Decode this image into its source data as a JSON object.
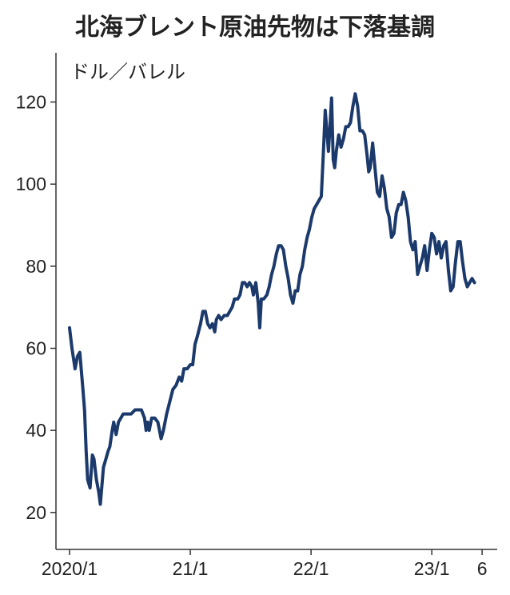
{
  "chart_data": {
    "type": "line",
    "title": "北海ブレント原油先物は下落基調",
    "y_label": "ドル／バレル",
    "color": "#1b3a6b",
    "xlim": [
      -1.35,
      42.5
    ],
    "xticks": [
      {
        "value": 0,
        "label": "2020/1"
      },
      {
        "value": 12,
        "label": "21/1"
      },
      {
        "value": 24,
        "label": "22/1"
      },
      {
        "value": 36,
        "label": "23/1"
      },
      {
        "value": 41,
        "label": "6"
      }
    ],
    "ylim": [
      11,
      132
    ],
    "yticks": [
      20,
      40,
      60,
      80,
      100,
      120
    ],
    "x": [
      0,
      0.24,
      0.55,
      0.78,
      1.02,
      1.33,
      1.49,
      1.65,
      1.8,
      2.04,
      2.27,
      2.43,
      2.67,
      2.9,
      3.06,
      3.37,
      3.61,
      3.84,
      4.0,
      4.24,
      4.39,
      4.63,
      4.86,
      5.1,
      5.33,
      5.73,
      6.12,
      6.51,
      6.82,
      7.14,
      7.45,
      7.61,
      7.76,
      7.92,
      8.16,
      8.47,
      8.78,
      9.1,
      9.33,
      9.65,
      9.96,
      10.27,
      10.59,
      10.9,
      11.14,
      11.37,
      11.69,
      12.0,
      12.24,
      12.47,
      12.71,
      13.02,
      13.25,
      13.49,
      13.73,
      13.96,
      14.2,
      14.43,
      14.59,
      14.82,
      15.06,
      15.37,
      15.69,
      15.92,
      16.16,
      16.39,
      16.71,
      16.94,
      17.18,
      17.41,
      17.65,
      17.88,
      18.12,
      18.27,
      18.51,
      18.75,
      18.9,
      19.06,
      19.29,
      19.61,
      19.84,
      20.08,
      20.31,
      20.55,
      20.78,
      21.02,
      21.25,
      21.49,
      21.73,
      21.96,
      22.2,
      22.43,
      22.67,
      22.9,
      23.14,
      23.37,
      23.61,
      23.84,
      24.08,
      24.31,
      24.55,
      24.78,
      25.02,
      25.25,
      25.41,
      25.57,
      25.73,
      25.88,
      26.04,
      26.2,
      26.35,
      26.51,
      26.75,
      26.98,
      27.22,
      27.45,
      27.69,
      27.92,
      28.16,
      28.39,
      28.63,
      28.86,
      29.1,
      29.33,
      29.57,
      29.73,
      29.88,
      30.12,
      30.35,
      30.59,
      30.82,
      31.06,
      31.29,
      31.53,
      31.76,
      32.0,
      32.24,
      32.47,
      32.71,
      32.94,
      33.18,
      33.41,
      33.65,
      33.88,
      34.12,
      34.35,
      34.59,
      34.82,
      35.06,
      35.29,
      35.53,
      35.76,
      36.0,
      36.24,
      36.47,
      36.71,
      36.94,
      37.18,
      37.41,
      37.65,
      37.88,
      38.12,
      38.35,
      38.59,
      38.82,
      39.06,
      39.29,
      39.53,
      39.76,
      40.0,
      40.24
    ],
    "values": [
      65,
      60,
      55,
      58,
      59,
      50,
      45,
      35,
      28,
      26,
      34,
      33,
      28,
      25,
      22,
      31,
      33,
      35,
      36,
      40,
      42,
      39,
      42,
      43,
      44,
      44,
      44,
      45,
      45,
      45,
      43,
      40,
      42,
      40,
      43,
      43,
      42,
      38,
      40,
      44,
      47,
      50,
      51,
      53,
      52,
      55,
      55,
      56,
      56,
      61,
      63,
      66,
      69,
      69,
      66,
      65,
      66,
      64,
      67,
      68,
      67,
      68,
      68,
      69,
      70,
      72,
      72,
      73,
      76,
      76,
      75,
      76,
      75,
      73,
      76,
      71,
      65,
      72,
      72,
      73,
      75,
      78,
      80,
      83,
      85,
      85,
      84,
      80,
      77,
      73,
      71,
      74,
      74,
      78,
      80,
      84,
      87,
      89,
      92,
      94,
      95,
      96,
      97,
      109,
      118,
      113,
      108,
      114,
      121,
      106,
      104,
      108,
      112,
      109,
      111,
      114,
      114,
      115,
      119,
      122,
      119,
      113,
      113,
      112,
      107,
      103,
      104,
      110,
      104,
      98,
      97,
      102,
      99,
      94,
      92,
      87,
      88,
      93,
      95,
      95,
      98,
      96,
      92,
      86,
      84,
      86,
      78,
      80,
      82,
      85,
      79,
      84,
      88,
      87,
      83,
      86,
      82,
      85,
      86,
      79,
      74,
      75,
      81,
      86,
      86,
      81,
      77,
      75,
      76,
      77,
      76
    ]
  }
}
